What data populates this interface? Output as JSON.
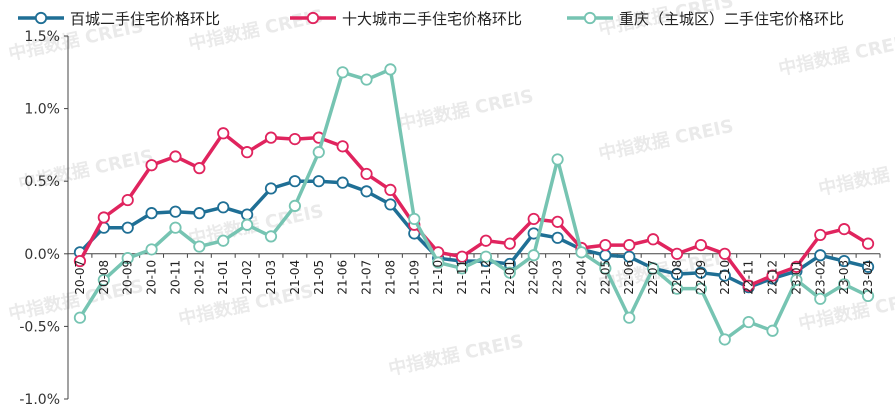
{
  "chart_data": {
    "type": "line",
    "categories": [
      "20-07",
      "20-08",
      "20-09",
      "20-10",
      "20-11",
      "20-12",
      "21-01",
      "21-02",
      "21-03",
      "21-04",
      "21-05",
      "21-06",
      "21-07",
      "21-08",
      "21-09",
      "21-10",
      "21-11",
      "21-12",
      "22-01",
      "22-02",
      "22-03",
      "22-04",
      "22-05",
      "22-06",
      "22-07",
      "22-08",
      "22-09",
      "22-10",
      "22-11",
      "22-12",
      "23-01",
      "23-02",
      "23-03",
      "23-04"
    ],
    "ylim": [
      -1.0,
      1.5
    ],
    "yticks": [
      "-1.0%",
      "-0.5%",
      "0.0%",
      "0.5%",
      "1.0%",
      "1.5%"
    ],
    "ytick_values": [
      -1.0,
      -0.5,
      0.0,
      0.5,
      1.0,
      1.5
    ],
    "grid": false,
    "legend_position": "top",
    "series": [
      {
        "name": "百城二手住宅价格环比",
        "color": "#1f6f95",
        "values": [
          0.01,
          0.18,
          0.18,
          0.28,
          0.29,
          0.28,
          0.32,
          0.27,
          0.45,
          0.5,
          0.5,
          0.49,
          0.43,
          0.34,
          0.14,
          -0.03,
          -0.05,
          -0.05,
          -0.07,
          0.14,
          0.11,
          0.03,
          -0.01,
          -0.02,
          -0.1,
          -0.14,
          -0.13,
          -0.15,
          -0.23,
          -0.17,
          -0.12,
          -0.01,
          -0.05,
          -0.09
        ]
      },
      {
        "name": "十大城市二手住宅价格环比",
        "color": "#e0245e",
        "values": [
          -0.05,
          0.25,
          0.37,
          0.61,
          0.67,
          0.59,
          0.83,
          0.7,
          0.8,
          0.79,
          0.8,
          0.74,
          0.55,
          0.44,
          0.2,
          0.01,
          -0.02,
          0.09,
          0.07,
          0.24,
          0.22,
          0.04,
          0.06,
          0.06,
          0.1,
          0.0,
          0.06,
          0.0,
          -0.22,
          -0.15,
          -0.09,
          0.13,
          0.17,
          0.07
        ]
      },
      {
        "name": "重庆（主城区）二手住宅价格环比",
        "color": "#76c4b2",
        "values": [
          -0.44,
          -0.18,
          -0.03,
          0.03,
          0.18,
          0.05,
          0.09,
          0.2,
          0.12,
          0.33,
          0.7,
          1.25,
          1.2,
          1.27,
          0.24,
          -0.06,
          -0.1,
          -0.02,
          -0.13,
          -0.01,
          0.65,
          0.01,
          -0.1,
          -0.44,
          -0.1,
          -0.24,
          -0.24,
          -0.59,
          -0.47,
          -0.53,
          -0.18,
          -0.31,
          -0.21,
          -0.29
        ]
      }
    ]
  },
  "watermark": "中指数据  CREIS"
}
